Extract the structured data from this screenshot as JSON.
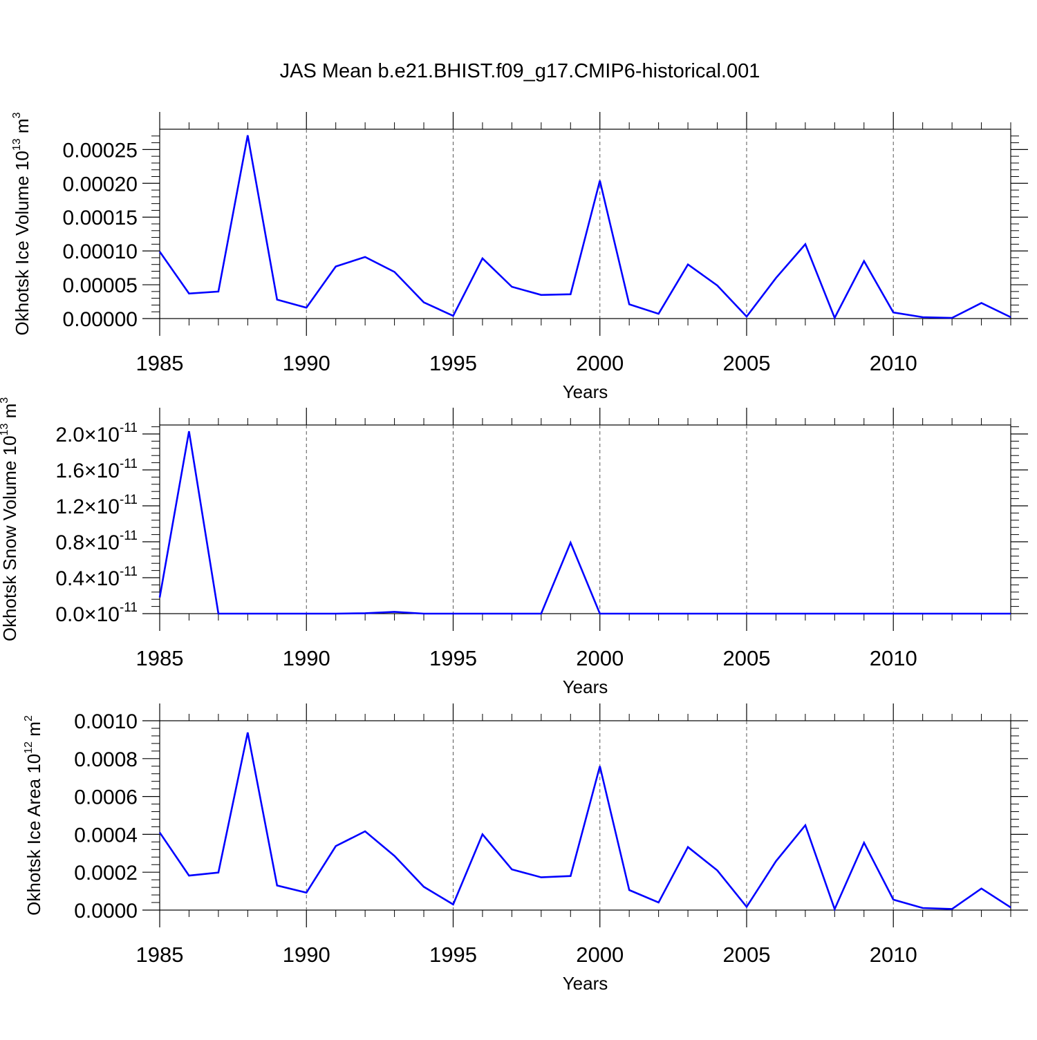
{
  "title": "JAS Mean b.e21.BHIST.f09_g17.CMIP6-historical.001",
  "line_color": "#0000ff",
  "chart_data": [
    {
      "type": "line",
      "ylabel": "Okhotsk Ice Volume",
      "ylabel_unit": {
        "base": "10",
        "exp": "13",
        "unit": "m",
        "unit_exp": "3"
      },
      "xlabel": "Years",
      "xlim": [
        1985,
        2014
      ],
      "ylim": [
        0.0,
        0.00028
      ],
      "x_ticks": [
        "1985",
        "1990",
        "1995",
        "2000",
        "2005",
        "2010"
      ],
      "y_ticks": [
        {
          "value": 0.0,
          "label": "0.00000"
        },
        {
          "value": 5e-05,
          "label": "0.00005"
        },
        {
          "value": 0.0001,
          "label": "0.00010"
        },
        {
          "value": 0.00015,
          "label": "0.00015"
        },
        {
          "value": 0.0002,
          "label": "0.00020"
        },
        {
          "value": 0.00025,
          "label": "0.00025"
        }
      ],
      "y_tick_mode": "plain",
      "x": [
        1985,
        1986,
        1987,
        1988,
        1989,
        1990,
        1991,
        1992,
        1993,
        1994,
        1995,
        1996,
        1997,
        1998,
        1999,
        2000,
        2001,
        2002,
        2003,
        2004,
        2005,
        2006,
        2007,
        2008,
        2009,
        2010,
        2011,
        2012,
        2013,
        2014
      ],
      "values": [
        9.9e-05,
        3.7e-05,
        4e-05,
        0.000271,
        2.8e-05,
        1.6e-05,
        7.7e-05,
        9.1e-05,
        6.9e-05,
        2.4e-05,
        4e-06,
        8.9e-05,
        4.7e-05,
        3.5e-05,
        3.6e-05,
        0.000204,
        2.1e-05,
        7e-06,
        8e-05,
        4.9e-05,
        3e-06,
        6e-05,
        0.00011,
        1e-06,
        8.5e-05,
        9e-06,
        2e-06,
        1e-06,
        2.3e-05,
        2e-06
      ]
    },
    {
      "type": "line",
      "ylabel": "Okhotsk Snow Volume",
      "ylabel_unit": {
        "base": "10",
        "exp": "13",
        "unit": "m",
        "unit_exp": "3"
      },
      "xlabel": "Years",
      "xlim": [
        1985,
        2014
      ],
      "ylim": [
        0.0,
        2.1e-11
      ],
      "x_ticks": [
        "1985",
        "1990",
        "1995",
        "2000",
        "2005",
        "2010"
      ],
      "y_ticks": [
        {
          "value": 0.0,
          "label": "0.0",
          "exp": "-11"
        },
        {
          "value": 4e-12,
          "label": "0.4",
          "exp": "-11"
        },
        {
          "value": 8e-12,
          "label": "0.8",
          "exp": "-11"
        },
        {
          "value": 1.2e-11,
          "label": "1.2",
          "exp": "-11"
        },
        {
          "value": 1.6e-11,
          "label": "1.6",
          "exp": "-11"
        },
        {
          "value": 2e-11,
          "label": "2.0",
          "exp": "-11"
        }
      ],
      "y_tick_mode": "sci",
      "sci_multiplier": "×10",
      "x": [
        1985,
        1986,
        1987,
        1988,
        1989,
        1990,
        1991,
        1992,
        1993,
        1994,
        1995,
        1996,
        1997,
        1998,
        1999,
        2000,
        2001,
        2002,
        2003,
        2004,
        2005,
        2006,
        2007,
        2008,
        2009,
        2010,
        2011,
        2012,
        2013,
        2014
      ],
      "values": [
        1.8e-12,
        2.03e-11,
        0,
        0,
        0,
        0,
        0,
        5e-14,
        2e-13,
        0,
        0,
        0,
        0,
        0,
        7.9e-12,
        0,
        0,
        0,
        0,
        0,
        0,
        0,
        0,
        0,
        0,
        0,
        0,
        0,
        0,
        0
      ]
    },
    {
      "type": "line",
      "ylabel": "Okhotsk Ice Area",
      "ylabel_unit": {
        "base": "10",
        "exp": "12",
        "unit": "m",
        "unit_exp": "2"
      },
      "xlabel": "Years",
      "xlim": [
        1985,
        2014
      ],
      "ylim": [
        0.0,
        0.001
      ],
      "x_ticks": [
        "1985",
        "1990",
        "1995",
        "2000",
        "2005",
        "2010"
      ],
      "y_ticks": [
        {
          "value": 0.0,
          "label": "0.0000"
        },
        {
          "value": 0.0002,
          "label": "0.0002"
        },
        {
          "value": 0.0004,
          "label": "0.0004"
        },
        {
          "value": 0.0006,
          "label": "0.0006"
        },
        {
          "value": 0.0008,
          "label": "0.0008"
        },
        {
          "value": 0.001,
          "label": "0.0010"
        }
      ],
      "y_tick_mode": "plain",
      "x": [
        1985,
        1986,
        1987,
        1988,
        1989,
        1990,
        1991,
        1992,
        1993,
        1994,
        1995,
        1996,
        1997,
        1998,
        1999,
        2000,
        2001,
        2002,
        2003,
        2004,
        2005,
        2006,
        2007,
        2008,
        2009,
        2010,
        2011,
        2012,
        2013,
        2014
      ],
      "values": [
        0.00041,
        0.000182,
        0.000198,
        0.000938,
        0.00013,
        9.2e-05,
        0.000338,
        0.000416,
        0.000286,
        0.000123,
        3e-05,
        0.0004,
        0.000215,
        0.000173,
        0.00018,
        0.00076,
        0.000106,
        4e-05,
        0.000333,
        0.00021,
        1.7e-05,
        0.000258,
        0.000448,
        5e-06,
        0.000356,
        5.5e-05,
        1.1e-05,
        6e-06,
        0.000114,
        1.4e-05
      ]
    }
  ]
}
